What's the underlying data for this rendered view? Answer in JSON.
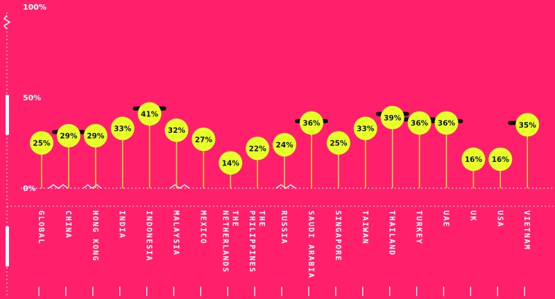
{
  "colors": {
    "background": "#ff1f6b",
    "bubble": "#e8ff2a",
    "stem": "#e8e040",
    "axis": "#ffffff",
    "marker": "#111111",
    "label_text": "#111111"
  },
  "chart_data": {
    "type": "scatter",
    "style": "lollipop",
    "ylim": [
      0,
      100
    ],
    "y_ticks": [
      {
        "value": 100,
        "label": "100%"
      },
      {
        "value": 50,
        "label": "50%"
      },
      {
        "value": 0,
        "label": "0%"
      }
    ],
    "categories": [
      "GLOBAL",
      "CHINA",
      "HONG KONG",
      "INDIA",
      "INDONESIA",
      "MALAYSIA",
      "MEXICO",
      "NETHERLANDS",
      "THE PHILIPPINES",
      "RUSSIA",
      "SAUDI ARABIA",
      "SINGAPORE",
      "TAIWAN",
      "THAILAND",
      "TURKEY",
      "UAE",
      "UK",
      "USA",
      "VIETNAM"
    ],
    "category_lines": [
      [
        "GLOBAL"
      ],
      [
        "CHINA"
      ],
      [
        "HONG KONG"
      ],
      [
        "INDIA"
      ],
      [
        "INDONESIA"
      ],
      [
        "MALAYSIA"
      ],
      [
        "MEXICO"
      ],
      [
        "NETHERLANDS",
        "THE"
      ],
      [
        "PHILIPPINES",
        "THE"
      ],
      [
        "RUSSIA"
      ],
      [
        "SAUDI ARABIA"
      ],
      [
        "SINGAPORE"
      ],
      [
        "TAIWAN"
      ],
      [
        "THAILAND"
      ],
      [
        "TURKEY"
      ],
      [
        "UAE"
      ],
      [
        "UK"
      ],
      [
        "USA"
      ],
      [
        "VIETNAM"
      ]
    ],
    "values": [
      25,
      29,
      29,
      33,
      41,
      32,
      27,
      14,
      22,
      24,
      36,
      25,
      33,
      39,
      36,
      36,
      16,
      16,
      35
    ],
    "value_labels": [
      "25%",
      "29%",
      "29%",
      "33%",
      "41%",
      "32%",
      "27%",
      "14%",
      "22%",
      "24%",
      "36%",
      "25%",
      "33%",
      "39%",
      "36%",
      "36%",
      "16%",
      "16%",
      "35%"
    ],
    "markers": [
      {
        "category": "CHINA",
        "value": 31
      },
      {
        "category": "INDONESIA",
        "value": 44
      },
      {
        "category": "SAUDI ARABIA",
        "value": 37
      },
      {
        "category": "THAILAND",
        "value": 41
      },
      {
        "category": "TURKEY",
        "value": 38
      },
      {
        "category": "UAE",
        "value": 37
      },
      {
        "category": "VIETNAM",
        "value": 36
      }
    ],
    "grid": false,
    "legend": "none"
  }
}
